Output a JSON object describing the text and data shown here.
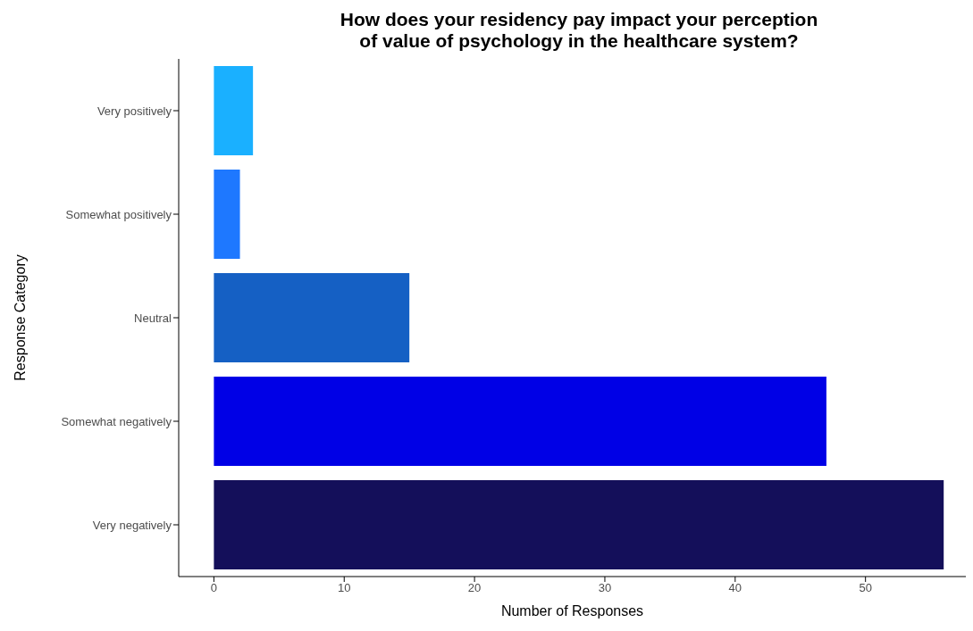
{
  "chart_data": {
    "type": "bar",
    "orientation": "horizontal",
    "title": "How does your residency pay impact your perception of value of psychology in the healthcare system?",
    "xlabel": "Number of Responses",
    "ylabel": "Response Category",
    "categories": [
      "Very positively",
      "Somewhat positively",
      "Neutral",
      "Somewhat negatively",
      "Very negatively"
    ],
    "values": [
      3,
      2,
      15,
      47,
      56
    ],
    "colors": [
      "#1ab0ff",
      "#1e78ff",
      "#1560c4",
      "#0000e6",
      "#140f5a"
    ],
    "xlim": [
      -2.7,
      57.7
    ],
    "xticks": [
      0,
      10,
      20,
      30,
      40,
      50
    ],
    "grid": false,
    "legend": false
  }
}
